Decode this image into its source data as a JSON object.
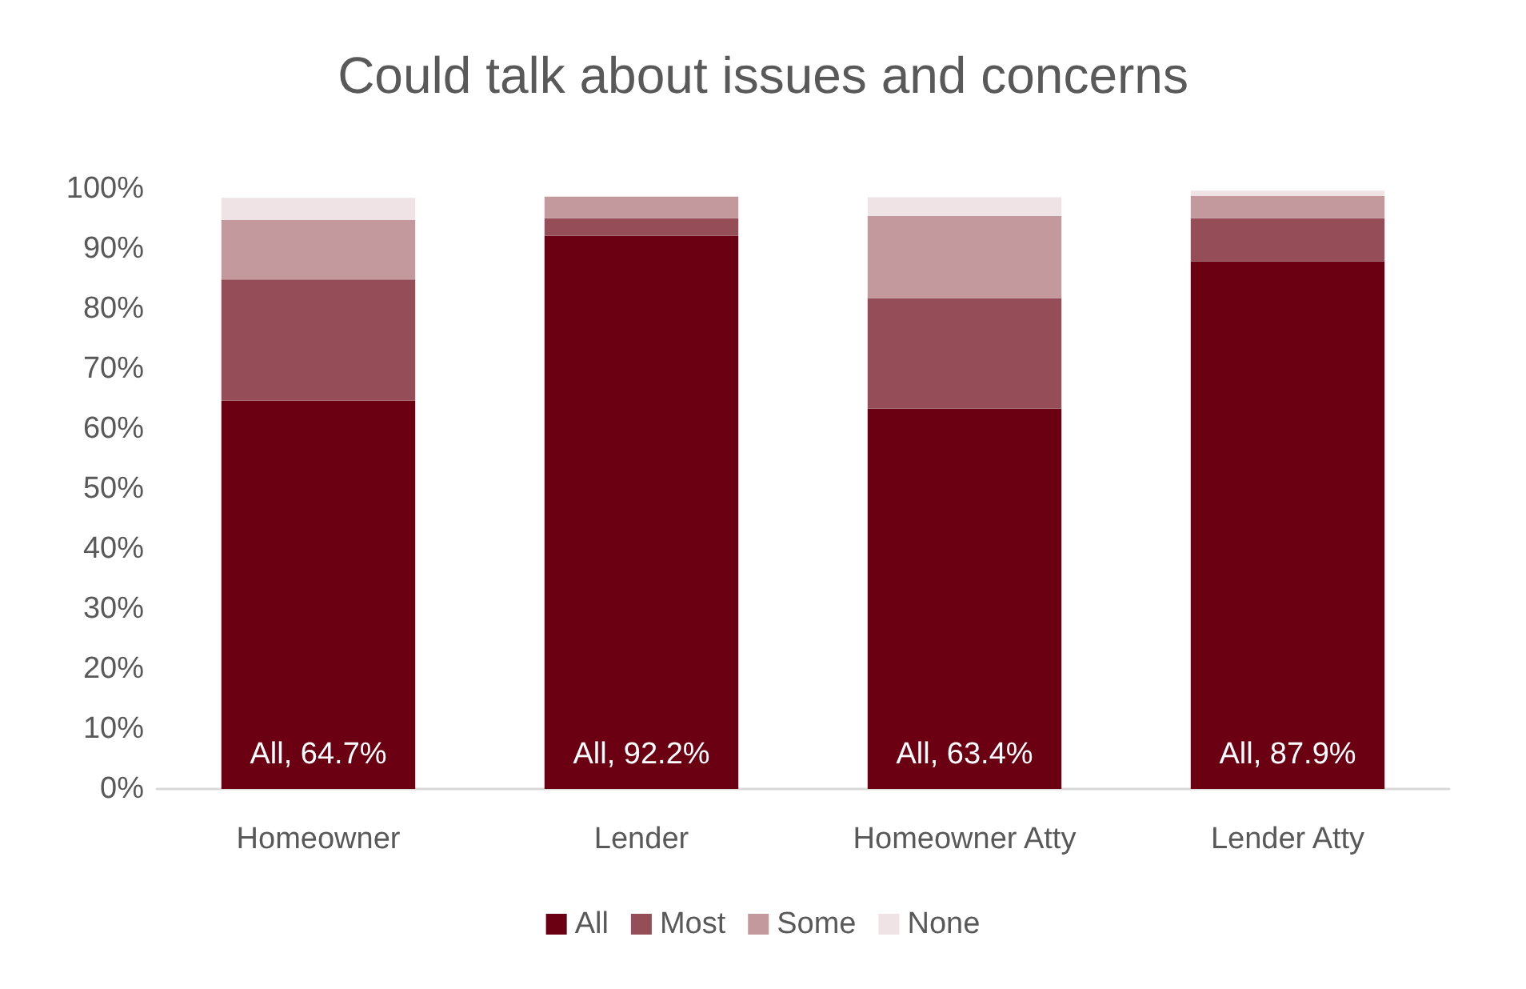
{
  "chart_data": {
    "type": "bar",
    "title": "Could talk about issues and concerns",
    "stacked": true,
    "categories": [
      "Homeowner",
      "Lender",
      "Homeowner Atty",
      "Lender Atty"
    ],
    "series": [
      {
        "name": "All",
        "color": "#6b0012",
        "values": [
          64.7,
          92.2,
          63.4,
          87.9
        ],
        "value_labels": [
          "All, 64.7%",
          "All, 92.2%",
          "All, 63.4%",
          "All, 87.9%"
        ]
      },
      {
        "name": "Most",
        "color": "#954e57",
        "values": [
          20.2,
          2.9,
          18.4,
          7.2
        ]
      },
      {
        "name": "Some",
        "color": "#c3999d",
        "values": [
          9.9,
          3.6,
          13.7,
          3.7
        ]
      },
      {
        "name": "None",
        "color": "#efe3e5",
        "values": [
          3.7,
          null,
          3.1,
          0.9
        ]
      }
    ],
    "ylim": [
      0,
      100
    ],
    "yticks": [
      {
        "value": 0,
        "label": "0%"
      },
      {
        "value": 10,
        "label": "10%"
      },
      {
        "value": 20,
        "label": "20%"
      },
      {
        "value": 30,
        "label": "30%"
      },
      {
        "value": 40,
        "label": "40%"
      },
      {
        "value": 50,
        "label": "50%"
      },
      {
        "value": 60,
        "label": "60%"
      },
      {
        "value": 70,
        "label": "70%"
      },
      {
        "value": 80,
        "label": "80%"
      },
      {
        "value": 90,
        "label": "90%"
      },
      {
        "value": 100,
        "label": "100%"
      }
    ],
    "grid": false,
    "legend": "bottom"
  }
}
